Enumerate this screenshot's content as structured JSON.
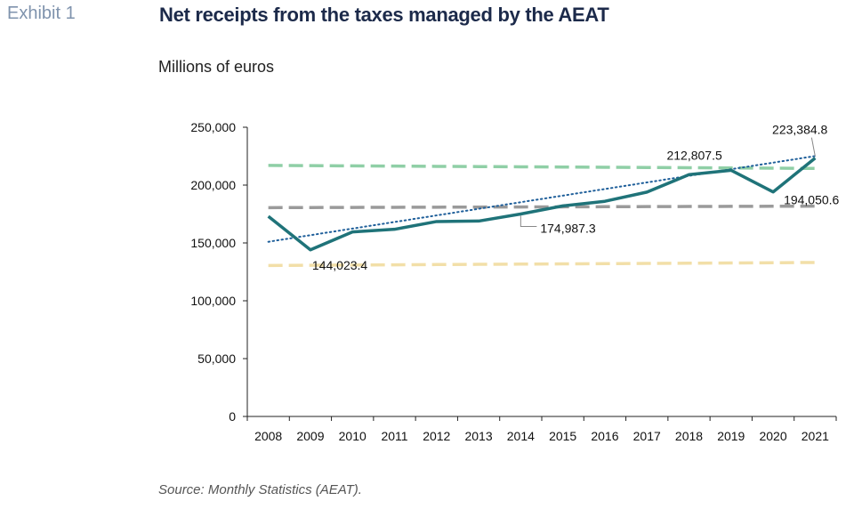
{
  "exhibit_label": "Exhibit 1",
  "title": "Net receipts from the taxes managed by the AEAT",
  "subtitle": "Millions of euros",
  "source": "Source: Monthly Statistics (AEAT).",
  "colors": {
    "main_line": "#1f7379",
    "trend_dotted": "#1f5f9a",
    "dash_green": "#8fcfa6",
    "dash_gray": "#9a9a9a",
    "dash_yellow": "#f2dfa8",
    "axis": "#222222"
  },
  "chart_data": {
    "type": "line",
    "categories": [
      "2008",
      "2009",
      "2010",
      "2011",
      "2012",
      "2013",
      "2014",
      "2015",
      "2016",
      "2017",
      "2018",
      "2019",
      "2020",
      "2021"
    ],
    "ylim": [
      0,
      250000
    ],
    "yticks": [
      0,
      50000,
      100000,
      150000,
      200000,
      250000
    ],
    "ytick_labels": [
      "0",
      "50,000",
      "100,000",
      "150,000",
      "200,000",
      "250,000"
    ],
    "grid": false,
    "series": [
      {
        "role": "main",
        "style": "solid",
        "values": [
          173000,
          144023.4,
          159500,
          161800,
          168500,
          168900,
          174987.3,
          182000,
          186000,
          193950,
          209000,
          212807.5,
          194050.6,
          223384.8
        ]
      },
      {
        "role": "trend",
        "style": "dotted",
        "values": [
          151000,
          156700,
          162400,
          168100,
          173800,
          179500,
          185200,
          190900,
          196600,
          202300,
          208000,
          213700,
          219400,
          225100
        ]
      },
      {
        "role": "reference",
        "style": "dashed",
        "color_key": "dash_green",
        "values": [
          217000,
          216800,
          216600,
          216400,
          216200,
          216000,
          215800,
          215600,
          215400,
          215200,
          215000,
          214800,
          214600,
          214400
        ]
      },
      {
        "role": "reference",
        "style": "dashed",
        "color_key": "dash_gray",
        "values": [
          180500,
          180600,
          180700,
          180800,
          180900,
          181000,
          181100,
          181200,
          181300,
          181400,
          181500,
          181600,
          181700,
          181800
        ]
      },
      {
        "role": "reference",
        "style": "dashed",
        "color_key": "dash_yellow",
        "values": [
          130500,
          130700,
          130900,
          131100,
          131300,
          131500,
          131700,
          131900,
          132100,
          132300,
          132500,
          132700,
          132900,
          133100
        ]
      }
    ],
    "annotations": [
      {
        "text": "144,023.4",
        "index": 1,
        "value": 144023.4
      },
      {
        "text": "174,987.3",
        "index": 6,
        "value": 174987.3
      },
      {
        "text": "212,807.5",
        "index": 11,
        "value": 212807.5
      },
      {
        "text": "194,050.6",
        "index": 12,
        "value": 194050.6
      },
      {
        "text": "223,384.8",
        "index": 13,
        "value": 223384.8
      }
    ]
  }
}
